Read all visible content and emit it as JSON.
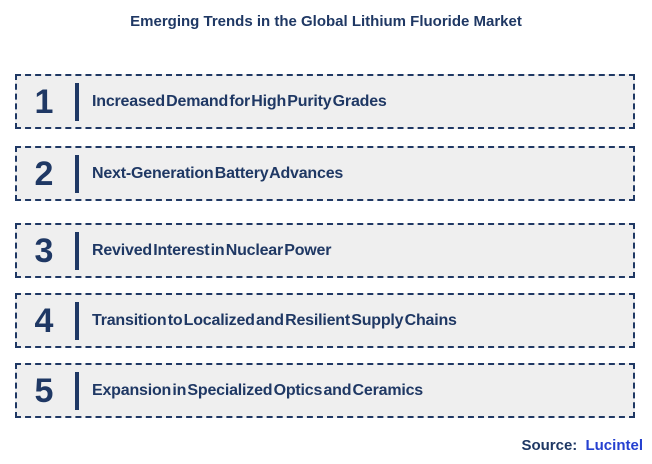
{
  "chart_data": {
    "type": "table",
    "title": "Emerging Trends in the Global Lithium Fluoride Market",
    "categories": [
      "1",
      "2",
      "3",
      "4",
      "5"
    ],
    "values": [
      "Increased Demand for High Purity Grades",
      "Next-Generation Battery Advances",
      "Revived Interest in Nuclear Power",
      "Transition to Localized and Resilient Supply Chains",
      "Expansion in Specialized Optics and Ceramics"
    ],
    "legend_position": "none",
    "grid": false
  },
  "title": "Emerging Trends in the Global Lithium Fluoride Market",
  "trends": [
    {
      "number": "1",
      "label": "Increased Demand for High Purity Grades"
    },
    {
      "number": "2",
      "label": "Next-Generation Battery Advances"
    },
    {
      "number": "3",
      "label": "Revived Interest in Nuclear Power"
    },
    {
      "number": "4",
      "label": "Transition to Localized and Resilient Supply Chains"
    },
    {
      "number": "5",
      "label": "Expansion in Specialized Optics and Ceramics"
    }
  ],
  "source": {
    "label": "Source:",
    "value": "Lucintel"
  },
  "colors": {
    "navy": "#1F3864",
    "link_blue": "#2540D0",
    "row_background": "#EFEFEF",
    "page_background": "#FFFFFF"
  }
}
